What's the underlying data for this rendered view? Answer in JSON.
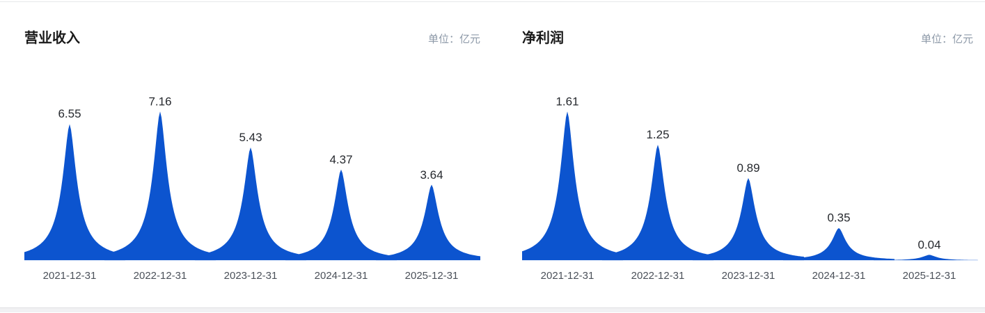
{
  "colors": {
    "peak_fill": "#0c54cf",
    "title_text": "#1a1a1a",
    "value_text": "#26292e",
    "axis_text": "#4a5059",
    "unit_text": "#8d99a8",
    "card_border": "#e7e8ea",
    "page_background": "#f1f1f3"
  },
  "panels": [
    {
      "title": "营业收入",
      "unit_label": "单位：亿元",
      "chart_data": {
        "type": "area",
        "style": "peak-mountain",
        "title": "营业收入",
        "unit": "亿元",
        "categories": [
          "2021-12-31",
          "2022-12-31",
          "2023-12-31",
          "2024-12-31",
          "2025-12-31"
        ],
        "values": [
          6.55,
          7.16,
          5.43,
          4.37,
          3.64
        ],
        "value_labels": [
          "6.55",
          "7.16",
          "5.43",
          "4.37",
          "3.64"
        ],
        "xlabel": "",
        "ylabel": "营业收入(亿元)",
        "ylim": [
          0,
          7.16
        ],
        "grid": false,
        "legend": "none",
        "series_color": "#0c54cf"
      }
    },
    {
      "title": "净利润",
      "unit_label": "单位：亿元",
      "chart_data": {
        "type": "area",
        "style": "peak-mountain",
        "title": "净利润",
        "unit": "亿元",
        "categories": [
          "2021-12-31",
          "2022-12-31",
          "2023-12-31",
          "2024-12-31",
          "2025-12-31"
        ],
        "values": [
          1.61,
          1.25,
          0.89,
          0.35,
          0.04
        ],
        "value_labels": [
          "1.61",
          "1.25",
          "0.89",
          "0.35",
          "0.04"
        ],
        "xlabel": "",
        "ylabel": "净利润(亿元)",
        "ylim": [
          0,
          1.61
        ],
        "grid": false,
        "legend": "none",
        "series_color": "#0c54cf"
      }
    }
  ]
}
